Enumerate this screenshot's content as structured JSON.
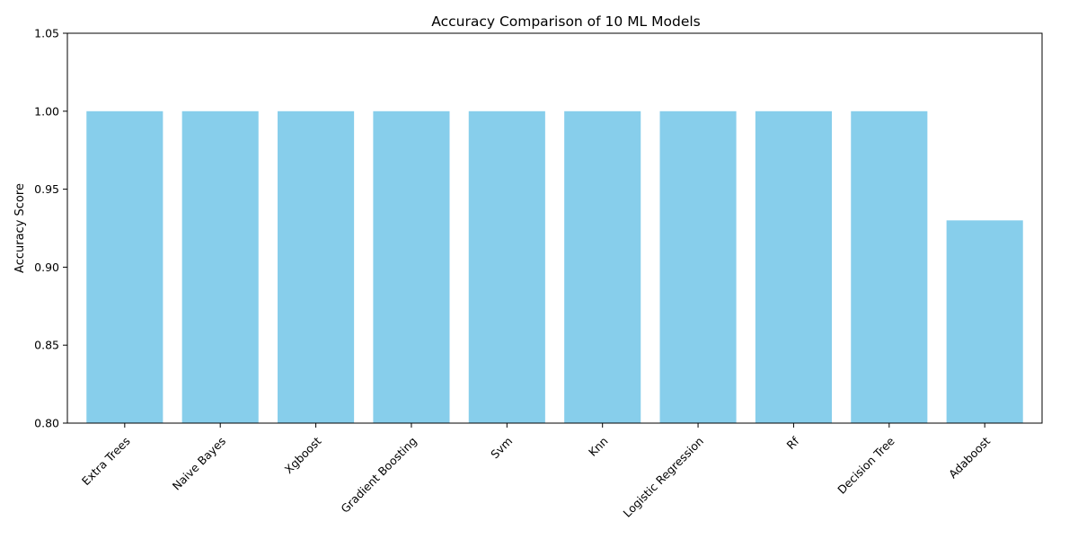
{
  "chart_data": {
    "type": "bar",
    "title": "Accuracy Comparison of 10 ML Models",
    "xlabel": "",
    "ylabel": "Accuracy Score",
    "categories": [
      "Extra Trees",
      "Naive Bayes",
      "Xgboost",
      "Gradient Boosting",
      "Svm",
      "Knn",
      "Logistic Regression",
      "Rf",
      "Decision Tree",
      "Adaboost"
    ],
    "values": [
      1.0,
      1.0,
      1.0,
      1.0,
      1.0,
      1.0,
      1.0,
      1.0,
      1.0,
      0.93
    ],
    "ylim": [
      0.8,
      1.05
    ],
    "yticks": [
      0.8,
      0.85,
      0.9,
      0.95,
      1.0,
      1.05
    ],
    "ytick_labels": [
      "0.80",
      "0.85",
      "0.90",
      "0.95",
      "1.00",
      "1.05"
    ],
    "bar_color": "#87ceeb",
    "grid": false,
    "legend": "none"
  }
}
